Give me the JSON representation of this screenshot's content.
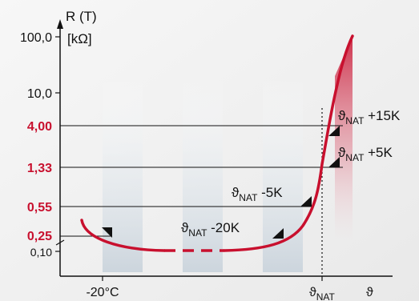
{
  "chart_data": {
    "type": "line",
    "title": "",
    "ylabel_line1": "R (T)",
    "ylabel_line2": "[kΩ]",
    "xlabel_symbol": "ϑ",
    "x_tick_minus20": "-20°C",
    "x_tick_nat_base": "ϑ",
    "x_tick_nat_sub": "NAT",
    "y_scale": "log",
    "y_ticks": [
      {
        "label": "100,0",
        "value": 100.0,
        "highlight": false
      },
      {
        "label": "10,0",
        "value": 10.0,
        "highlight": false
      },
      {
        "label": "4,00",
        "value": 4.0,
        "highlight": true
      },
      {
        "label": "1,33",
        "value": 1.33,
        "highlight": true
      },
      {
        "label": "0,55",
        "value": 0.55,
        "highlight": true
      },
      {
        "label": "0,25",
        "value": 0.25,
        "highlight": true
      },
      {
        "label": "0,10",
        "value": 0.1,
        "highlight": false
      }
    ],
    "annotations": [
      {
        "base": "ϑ",
        "sub": "NAT",
        "suffix": " +15K",
        "offset_k": 15,
        "value": 4.0
      },
      {
        "base": "ϑ",
        "sub": "NAT",
        "suffix": " +5K",
        "offset_k": 5,
        "value": 1.33
      },
      {
        "base": "ϑ",
        "sub": "NAT",
        "suffix": " -5K",
        "offset_k": -5,
        "value": 0.55
      },
      {
        "base": "ϑ",
        "sub": "NAT",
        "suffix": " -20K",
        "offset_k": -20,
        "value": 0.25
      }
    ],
    "colors": {
      "curve": "#c8102e",
      "highlight_label": "#c8102e",
      "band": "#d5dde4",
      "background": "#f1f1f1"
    }
  }
}
